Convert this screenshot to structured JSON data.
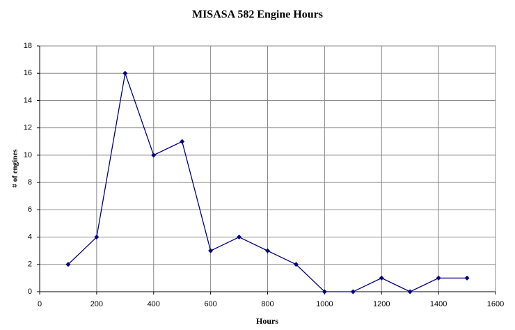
{
  "chart_data": {
    "type": "line",
    "title": "MISASA 582 Engine Hours",
    "x_label": "Hours",
    "y_label": "# of engines",
    "x": [
      100,
      200,
      300,
      400,
      500,
      600,
      700,
      800,
      900,
      1000,
      1100,
      1200,
      1300,
      1400,
      1500
    ],
    "series": [
      {
        "color": "#000080",
        "values": [
          2,
          4,
          16,
          10,
          11,
          3,
          4,
          3,
          2,
          0,
          0,
          1,
          0,
          1,
          1
        ]
      }
    ],
    "xlim": [
      0,
      1600
    ],
    "xticks": [
      0,
      200,
      400,
      600,
      800,
      1000,
      1200,
      1400,
      1600
    ],
    "ylim": [
      0,
      18
    ],
    "yticks": [
      0,
      2,
      4,
      6,
      8,
      10,
      12,
      14,
      16,
      18
    ],
    "grid": true
  }
}
